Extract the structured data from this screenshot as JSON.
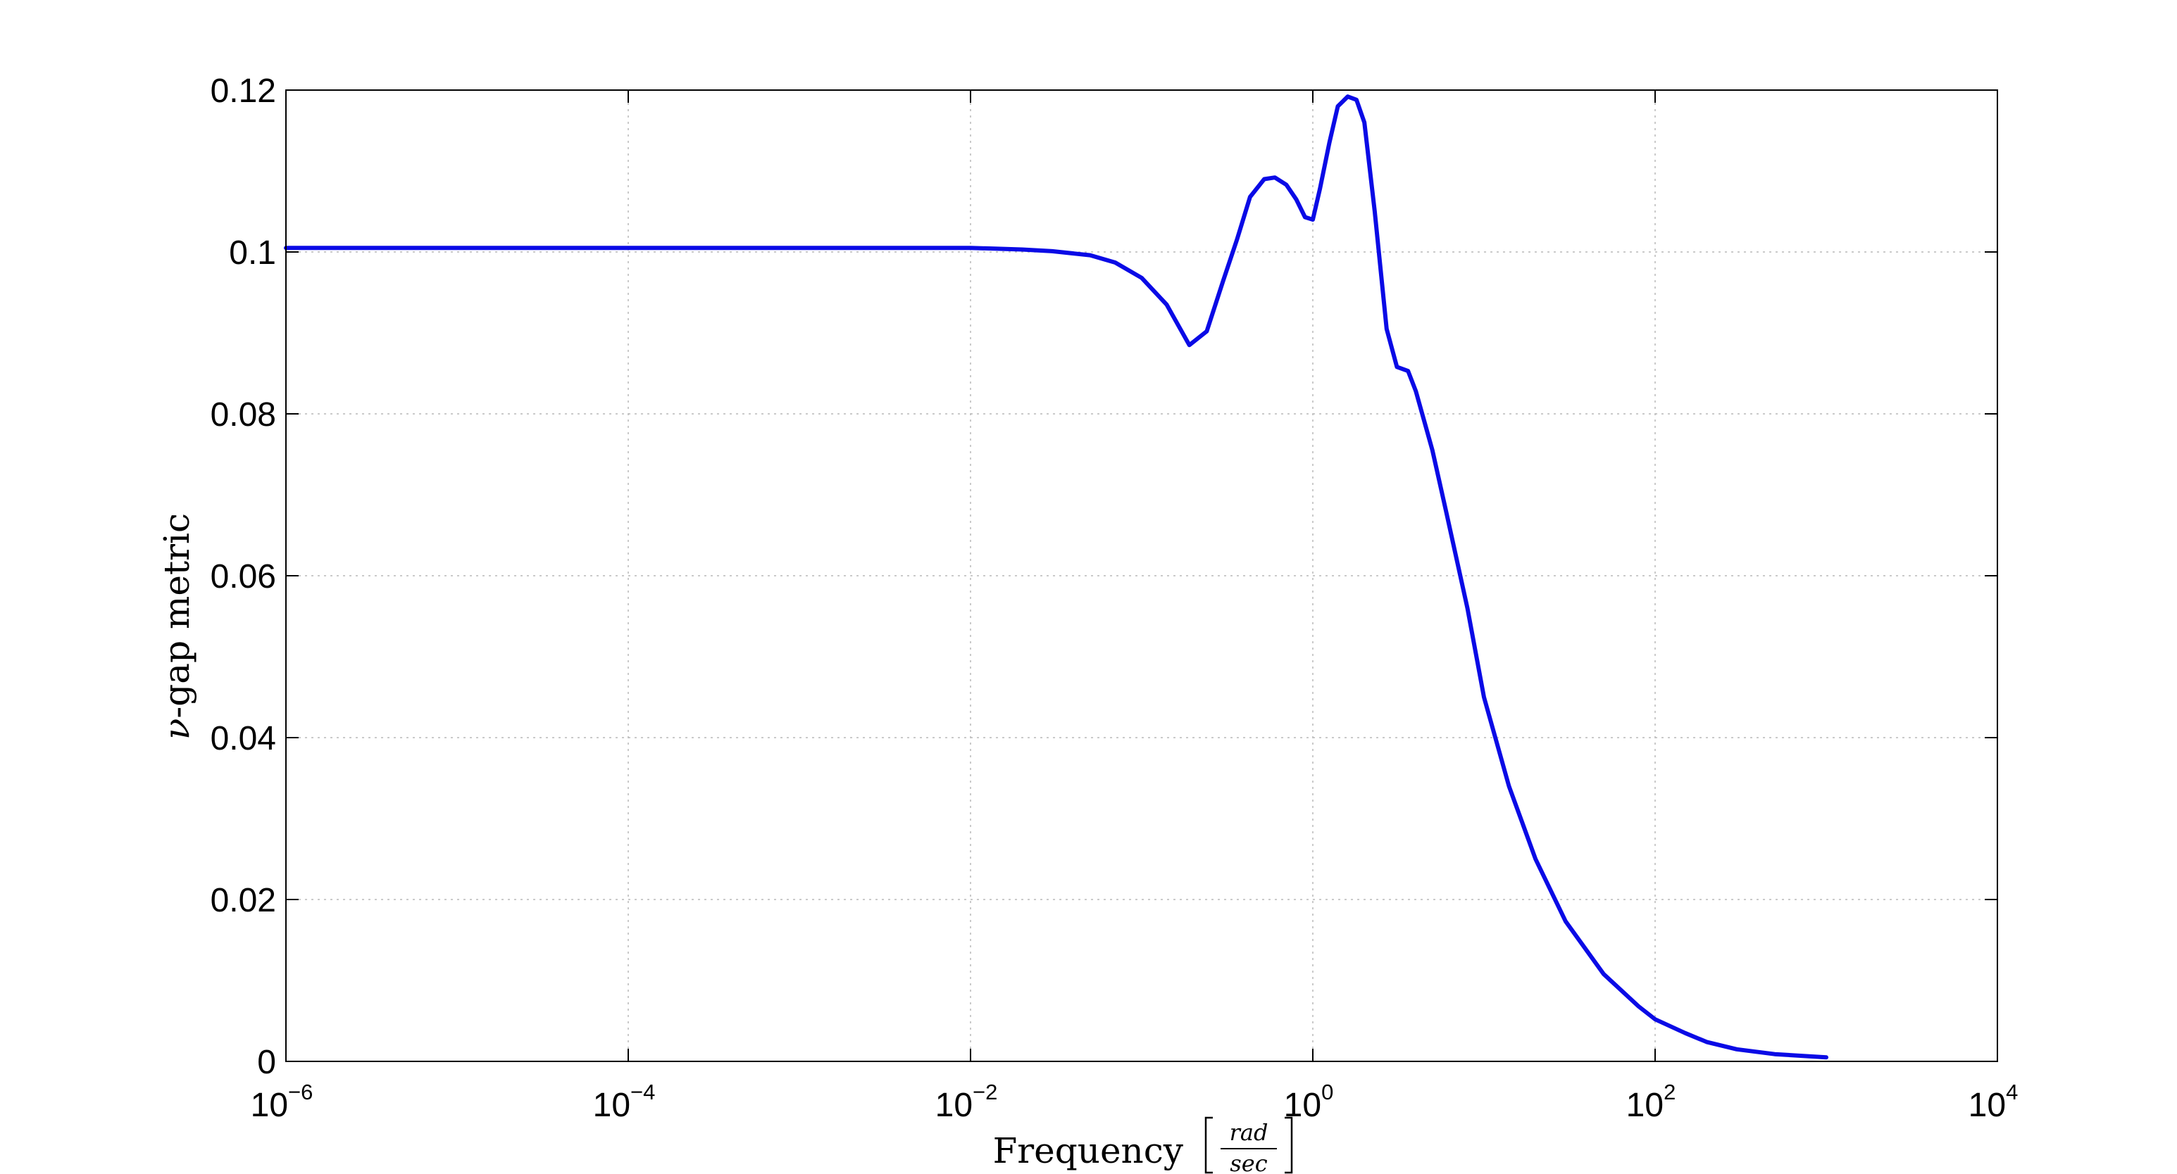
{
  "chart_data": {
    "type": "line",
    "title": "",
    "xlabel": "Frequency",
    "xlabel_unit_numerator": "rad",
    "xlabel_unit_denominator": "sec",
    "ylabel_symbol": "ν",
    "ylabel_text": "-gap metric",
    "xscale": "log",
    "xlim": [
      1e-06,
      10000
    ],
    "ylim": [
      0,
      0.12
    ],
    "grid": true,
    "legend": "none",
    "x_ticks": [
      {
        "base": "10",
        "exp": "−6"
      },
      {
        "base": "10",
        "exp": "−4"
      },
      {
        "base": "10",
        "exp": "−2"
      },
      {
        "base": "10",
        "exp": "0"
      },
      {
        "base": "10",
        "exp": "2"
      },
      {
        "base": "10",
        "exp": "4"
      }
    ],
    "y_ticks": [
      "0",
      "0.02",
      "0.04",
      "0.06",
      "0.08",
      "0.1",
      "0.12"
    ],
    "series": [
      {
        "color": "#0a0ae6",
        "x": [
          1e-06,
          1e-05,
          0.0001,
          0.001,
          0.005,
          0.01,
          0.02,
          0.03,
          0.05,
          0.07,
          0.1,
          0.14,
          0.19,
          0.24,
          0.3,
          0.36,
          0.43,
          0.52,
          0.6,
          0.7,
          0.8,
          0.9,
          1.0,
          1.1,
          1.25,
          1.4,
          1.6,
          1.8,
          2.0,
          2.3,
          2.7,
          3.1,
          3.6,
          4.0,
          5.0,
          6.0,
          8.0,
          10,
          14,
          20,
          30,
          50,
          80,
          100,
          150,
          200,
          300,
          500,
          1000
        ],
        "y": [
          0.1005,
          0.1005,
          0.1005,
          0.1005,
          0.1005,
          0.1005,
          0.1003,
          0.1001,
          0.0996,
          0.0987,
          0.0968,
          0.0935,
          0.0885,
          0.0902,
          0.0965,
          0.1015,
          0.1068,
          0.109,
          0.1092,
          0.1083,
          0.1065,
          0.1043,
          0.104,
          0.1078,
          0.1135,
          0.118,
          0.1192,
          0.1188,
          0.116,
          0.105,
          0.0905,
          0.0858,
          0.0853,
          0.0828,
          0.0755,
          0.068,
          0.056,
          0.045,
          0.034,
          0.025,
          0.0173,
          0.0108,
          0.0068,
          0.0052,
          0.0035,
          0.0024,
          0.0015,
          0.0009,
          0.0005
        ]
      }
    ]
  }
}
